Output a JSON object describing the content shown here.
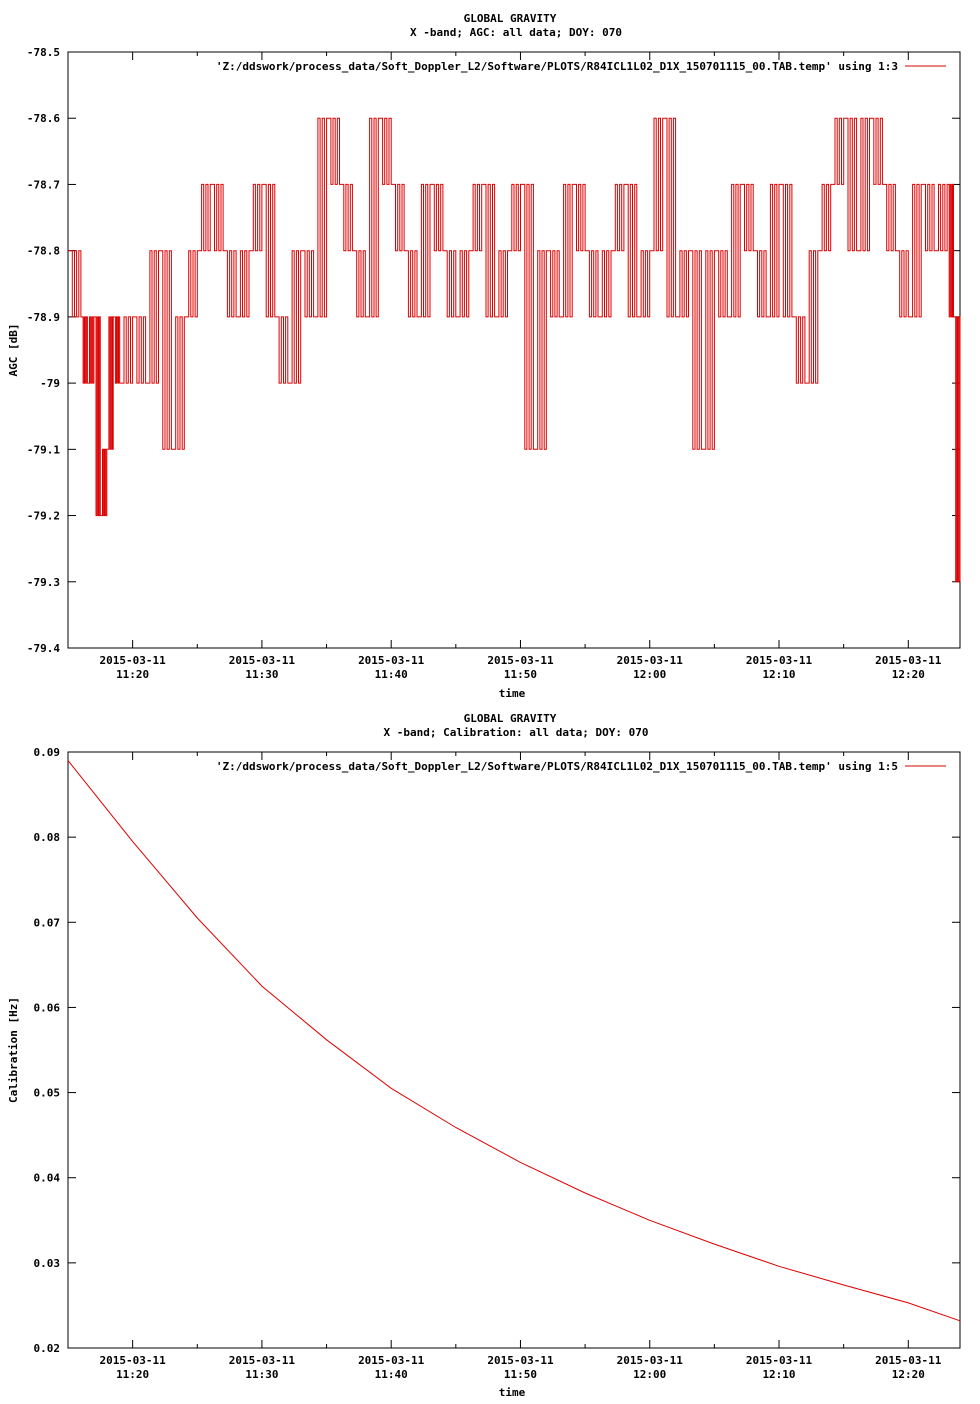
{
  "chart_data": [
    {
      "type": "line",
      "title": "GLOBAL GRAVITY",
      "subtitle": "X -band; AGC: all data; DOY: 070",
      "xlabel": "time",
      "ylabel": "AGC [dB]",
      "legend": "'Z:/ddswork/process_data/Soft_Doppler_L2/Software/PLOTS/R84ICL1L02_D1X_150701115_00.TAB.temp' using 1:3",
      "legend_position": "top-right",
      "line_color": "#dd0000",
      "grid": false,
      "xlim": [
        "2015-03-11 11:15:00",
        "2015-03-11 12:24:00"
      ],
      "ylim": [
        -79.4,
        -78.5
      ],
      "yticks": [
        "-78.5",
        "-78.6",
        "-78.7",
        "-78.8",
        "-78.9",
        "-79",
        "-79.1",
        "-79.2",
        "-79.3",
        "-79.4"
      ],
      "xtick_dates": [
        "2015-03-11",
        "2015-03-11",
        "2015-03-11",
        "2015-03-11",
        "2015-03-11",
        "2015-03-11",
        "2015-03-11"
      ],
      "xtick_times": [
        "11:20",
        "11:30",
        "11:40",
        "11:50",
        "12:00",
        "12:10",
        "12:20"
      ],
      "x": [
        "2015-03-11 11:15:00",
        "2015-03-11 11:16:00",
        "2015-03-11 11:16:30",
        "2015-03-11 11:17:00",
        "2015-03-11 11:17:30",
        "2015-03-11 11:18:00",
        "2015-03-11 11:18:30",
        "2015-03-11 11:19:00",
        "2015-03-11 11:20:00",
        "2015-03-11 11:21:00",
        "2015-03-11 11:22:00",
        "2015-03-11 11:23:00",
        "2015-03-11 11:24:00",
        "2015-03-11 11:25:00",
        "2015-03-11 11:26:00",
        "2015-03-11 11:27:00",
        "2015-03-11 11:28:00",
        "2015-03-11 11:29:00",
        "2015-03-11 11:30:00",
        "2015-03-11 11:31:00",
        "2015-03-11 11:32:00",
        "2015-03-11 11:33:00",
        "2015-03-11 11:34:00",
        "2015-03-11 11:35:00",
        "2015-03-11 11:36:00",
        "2015-03-11 11:37:00",
        "2015-03-11 11:38:00",
        "2015-03-11 11:39:00",
        "2015-03-11 11:40:00",
        "2015-03-11 11:41:00",
        "2015-03-11 11:42:00",
        "2015-03-11 11:43:00",
        "2015-03-11 11:44:00",
        "2015-03-11 11:45:00",
        "2015-03-11 11:46:00",
        "2015-03-11 11:47:00",
        "2015-03-11 11:48:00",
        "2015-03-11 11:49:00",
        "2015-03-11 11:50:00",
        "2015-03-11 11:51:00",
        "2015-03-11 11:52:00",
        "2015-03-11 11:53:00",
        "2015-03-11 11:54:00",
        "2015-03-11 11:55:00",
        "2015-03-11 11:56:00",
        "2015-03-11 11:57:00",
        "2015-03-11 11:58:00",
        "2015-03-11 11:59:00",
        "2015-03-11 12:00:00",
        "2015-03-11 12:01:00",
        "2015-03-11 12:02:00",
        "2015-03-11 12:03:00",
        "2015-03-11 12:04:00",
        "2015-03-11 12:05:00",
        "2015-03-11 12:06:00",
        "2015-03-11 12:07:00",
        "2015-03-11 12:08:00",
        "2015-03-11 12:09:00",
        "2015-03-11 12:10:00",
        "2015-03-11 12:11:00",
        "2015-03-11 12:12:00",
        "2015-03-11 12:13:00",
        "2015-03-11 12:14:00",
        "2015-03-11 12:15:00",
        "2015-03-11 12:16:00",
        "2015-03-11 12:17:00",
        "2015-03-11 12:18:00",
        "2015-03-11 12:19:00",
        "2015-03-11 12:20:00",
        "2015-03-11 12:21:00",
        "2015-03-11 12:22:00",
        "2015-03-11 12:23:00",
        "2015-03-11 12:23:30",
        "2015-03-11 12:24:00"
      ],
      "y": [
        -78.8,
        -78.9,
        -79.0,
        -78.9,
        -79.2,
        -79.1,
        -78.9,
        -79.0,
        -78.9,
        -79.0,
        -78.8,
        -79.1,
        -78.9,
        -78.8,
        -78.7,
        -78.8,
        -78.9,
        -78.8,
        -78.7,
        -78.9,
        -79.0,
        -78.8,
        -78.9,
        -78.6,
        -78.7,
        -78.8,
        -78.9,
        -78.6,
        -78.7,
        -78.8,
        -78.9,
        -78.7,
        -78.8,
        -78.9,
        -78.8,
        -78.7,
        -78.9,
        -78.8,
        -78.7,
        -79.1,
        -78.8,
        -78.9,
        -78.7,
        -78.8,
        -78.9,
        -78.8,
        -78.7,
        -78.9,
        -78.8,
        -78.6,
        -78.9,
        -78.8,
        -79.1,
        -78.8,
        -78.9,
        -78.7,
        -78.8,
        -78.9,
        -78.7,
        -78.9,
        -79.0,
        -78.8,
        -78.7,
        -78.6,
        -78.8,
        -78.6,
        -78.7,
        -78.8,
        -78.9,
        -78.7,
        -78.8,
        -78.7,
        -78.9,
        -79.3
      ],
      "series": [
        {
          "name": "'Z:/ddswork/process_data/Soft_Doppler_L2/Software/PLOTS/R84ICL1L02_D1X_150701115_00.TAB.temp' using 1:3"
        }
      ]
    },
    {
      "type": "line",
      "title": "GLOBAL GRAVITY",
      "subtitle": "X -band; Calibration: all data; DOY: 070",
      "xlabel": "time",
      "ylabel": "Calibration [Hz]",
      "legend": "'Z:/ddswork/process_data/Soft_Doppler_L2/Software/PLOTS/R84ICL1L02_D1X_150701115_00.TAB.temp' using 1:5",
      "legend_position": "top-right",
      "line_color": "#dd0000",
      "grid": false,
      "xlim": [
        "2015-03-11 11:15:00",
        "2015-03-11 12:24:00"
      ],
      "ylim": [
        0.02,
        0.09
      ],
      "yticks": [
        "0.09",
        "0.08",
        "0.07",
        "0.06",
        "0.05",
        "0.04",
        "0.03",
        "0.02"
      ],
      "xtick_dates": [
        "2015-03-11",
        "2015-03-11",
        "2015-03-11",
        "2015-03-11",
        "2015-03-11",
        "2015-03-11",
        "2015-03-11"
      ],
      "xtick_times": [
        "11:20",
        "11:30",
        "11:40",
        "11:50",
        "12:00",
        "12:10",
        "12:20"
      ],
      "x": [
        "2015-03-11 11:15:00",
        "2015-03-11 11:20:00",
        "2015-03-11 11:25:00",
        "2015-03-11 11:30:00",
        "2015-03-11 11:35:00",
        "2015-03-11 11:40:00",
        "2015-03-11 11:45:00",
        "2015-03-11 11:50:00",
        "2015-03-11 11:55:00",
        "2015-03-11 12:00:00",
        "2015-03-11 12:05:00",
        "2015-03-11 12:10:00",
        "2015-03-11 12:15:00",
        "2015-03-11 12:20:00",
        "2015-03-11 12:24:00"
      ],
      "y": [
        0.089,
        0.0795,
        0.0705,
        0.0625,
        0.0562,
        0.0505,
        0.0459,
        0.0418,
        0.0382,
        0.035,
        0.0322,
        0.0296,
        0.0274,
        0.0253,
        0.0232
      ],
      "series": [
        {
          "name": "'Z:/ddswork/process_data/Soft_Doppler_L2/Software/PLOTS/R84ICL1L02_D1X_150701115_00.TAB.temp' using 1:5"
        }
      ]
    }
  ]
}
